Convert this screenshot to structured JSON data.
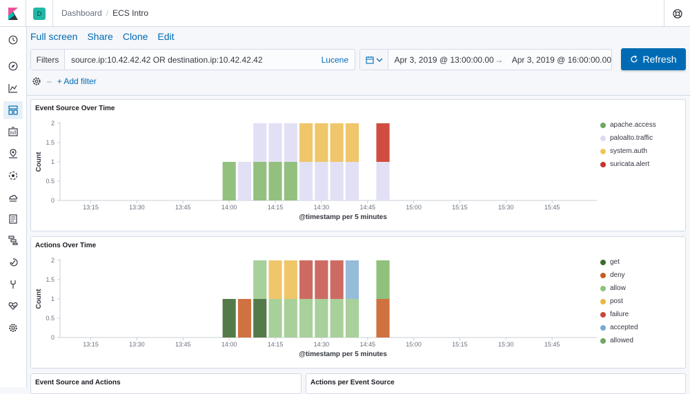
{
  "header": {
    "space_letter": "D",
    "breadcrumbs": [
      "Dashboard",
      "ECS Intro"
    ]
  },
  "nav_icons": [
    "clock-icon",
    "compass-icon",
    "visualize-icon",
    "dashboard-icon",
    "canvas-icon",
    "maps-icon",
    "ml-icon",
    "infra-icon",
    "logs-icon",
    "apm-icon",
    "uptime-icon",
    "devtools-icon",
    "monitoring-icon",
    "settings-icon"
  ],
  "actions": {
    "full_screen": "Full screen",
    "share": "Share",
    "clone": "Clone",
    "edit": "Edit"
  },
  "query": {
    "filters_label": "Filters",
    "text": "source.ip:10.42.42.42 OR destination.ip:10.42.42.42",
    "language": "Lucene"
  },
  "time": {
    "start": "Apr 3, 2019 @ 13:00:00.00",
    "end": "Apr 3, 2019 @ 16:00:00.00",
    "arrow": "→"
  },
  "refresh_label": "Refresh",
  "add_filter": "+ Add filter",
  "colors": {
    "accent": "#006bb4",
    "apache_access": "#6ea85f",
    "paloalto_traffic": "#dcdaf1",
    "system_auth": "#f0c65a",
    "suricata_alert": "#c7332e"
  },
  "chart_data": [
    {
      "type": "bar",
      "title": "Event Source Over Time",
      "xlabel": "@timestamp per 5 minutes",
      "ylabel": "Count",
      "ylim": [
        0,
        2
      ],
      "yticks": [
        "0",
        "0.5",
        "1",
        "1.5",
        "2"
      ],
      "xticks": [
        "13:15",
        "13:30",
        "13:45",
        "14:00",
        "14:15",
        "14:30",
        "14:45",
        "15:00",
        "15:15",
        "15:30",
        "15:45"
      ],
      "categories": [
        "14:00",
        "14:05",
        "14:10",
        "14:15",
        "14:20",
        "14:25",
        "14:30",
        "14:35",
        "14:40",
        "14:45",
        "14:50"
      ],
      "series": [
        {
          "name": "apache.access",
          "color": "#93c07f",
          "values": [
            1,
            0,
            1,
            1,
            1,
            0,
            0,
            0,
            0,
            0,
            0
          ]
        },
        {
          "name": "paloalto.traffic",
          "color": "#e2e0f5",
          "values": [
            0,
            1,
            1,
            1,
            1,
            1,
            1,
            1,
            1,
            0,
            1
          ]
        },
        {
          "name": "system.auth",
          "color": "#efc66a",
          "values": [
            0,
            0,
            0,
            0,
            0,
            1,
            1,
            1,
            1,
            0,
            0
          ]
        },
        {
          "name": "suricata.alert",
          "color": "#cf4d40",
          "values": [
            0,
            0,
            0,
            0,
            0,
            0,
            0,
            0,
            0,
            0,
            1
          ]
        }
      ],
      "legend": [
        {
          "name": "apache.access",
          "color": "#6ea85f"
        },
        {
          "name": "paloalto.traffic",
          "color": "#dcdaf1"
        },
        {
          "name": "system.auth",
          "color": "#f0c65a"
        },
        {
          "name": "suricata.alert",
          "color": "#c7332e"
        }
      ]
    },
    {
      "type": "bar",
      "title": "Actions Over Time",
      "xlabel": "@timestamp per 5 minutes",
      "ylabel": "Count",
      "ylim": [
        0,
        2
      ],
      "yticks": [
        "0",
        "0.5",
        "1",
        "1.5",
        "2"
      ],
      "xticks": [
        "13:15",
        "13:30",
        "13:45",
        "14:00",
        "14:15",
        "14:30",
        "14:45",
        "15:00",
        "15:15",
        "15:30",
        "15:45"
      ],
      "categories": [
        "14:00",
        "14:05",
        "14:10",
        "14:15",
        "14:20",
        "14:25",
        "14:30",
        "14:35",
        "14:40",
        "14:45",
        "14:50"
      ],
      "series": [
        {
          "name": "get",
          "color": "#547a4a",
          "values": [
            1,
            0,
            1,
            0,
            0,
            0,
            0,
            0,
            0,
            0,
            0
          ]
        },
        {
          "name": "deny",
          "color": "#d07140",
          "values": [
            0,
            1,
            0,
            0,
            0,
            0,
            0,
            0,
            0,
            0,
            1
          ]
        },
        {
          "name": "allow",
          "color": "#a8d09a",
          "values": [
            0,
            0,
            1,
            1,
            1,
            1,
            1,
            1,
            1,
            0,
            0
          ]
        },
        {
          "name": "post",
          "color": "#efc66a",
          "values": [
            0,
            0,
            0,
            1,
            1,
            0,
            0,
            0,
            0,
            0,
            0
          ]
        },
        {
          "name": "failure",
          "color": "#cd6b62",
          "values": [
            0,
            0,
            0,
            0,
            0,
            1,
            1,
            1,
            0,
            0,
            0
          ]
        },
        {
          "name": "accepted",
          "color": "#95bcd9",
          "values": [
            0,
            0,
            0,
            0,
            0,
            0,
            0,
            0,
            1,
            0,
            0
          ]
        },
        {
          "name": "allowed",
          "color": "#8fc07c",
          "values": [
            0,
            0,
            0,
            0,
            0,
            0,
            0,
            0,
            0,
            0,
            1
          ]
        }
      ],
      "legend": [
        {
          "name": "get",
          "color": "#3b6b2f"
        },
        {
          "name": "deny",
          "color": "#c65d26"
        },
        {
          "name": "allow",
          "color": "#8cc37a"
        },
        {
          "name": "post",
          "color": "#e9b83e"
        },
        {
          "name": "failure",
          "color": "#c9473a"
        },
        {
          "name": "accepted",
          "color": "#77a9d6"
        },
        {
          "name": "allowed",
          "color": "#6ea85f"
        }
      ]
    }
  ],
  "bottom_panels": [
    "Event Source and Actions",
    "Actions per Event Source"
  ]
}
